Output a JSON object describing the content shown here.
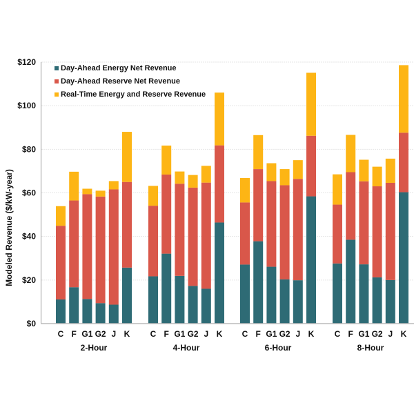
{
  "chart_data": {
    "type": "bar",
    "stacked": true,
    "title": "",
    "xlabel": "",
    "ylabel": "Modeled Revenue ($/kW-year)",
    "ylim": [
      0,
      120
    ],
    "yticks": [
      0,
      20,
      40,
      60,
      80,
      100,
      120
    ],
    "ytick_labels": [
      "$0",
      "$20",
      "$40",
      "$60",
      "$80",
      "$100",
      "$120"
    ],
    "grid": true,
    "legend_position": "top-left",
    "groups": [
      "2-Hour",
      "4-Hour",
      "6-Hour",
      "8-Hour"
    ],
    "categories": [
      "C",
      "F",
      "G1",
      "G2",
      "J",
      "K"
    ],
    "series": [
      {
        "name": "Day-Ahead Energy Net Revenue",
        "color": "#2E6B75",
        "values": [
          [
            11.1,
            16.7,
            11.3,
            9.4,
            8.7,
            25.7
          ],
          [
            21.7,
            32.1,
            21.9,
            17.3,
            16.0,
            46.4
          ],
          [
            27.1,
            37.8,
            26.1,
            20.3,
            19.9,
            58.4
          ],
          [
            27.6,
            38.5,
            27.2,
            21.2,
            20.0,
            60.3
          ]
        ]
      },
      {
        "name": "Day-Ahead Reserve Net Revenue",
        "color": "#D9574A",
        "values": [
          [
            33.8,
            39.8,
            48.1,
            48.9,
            52.9,
            39.3
          ],
          [
            32.4,
            36.3,
            42.3,
            45.1,
            48.7,
            35.4
          ],
          [
            28.5,
            33.1,
            39.3,
            43.2,
            46.5,
            27.8
          ],
          [
            27.0,
            31.0,
            38.1,
            41.8,
            44.6,
            27.3
          ]
        ]
      },
      {
        "name": "Real-Time Energy and Reserve Revenue",
        "color": "#FDB515",
        "values": [
          [
            9.0,
            13.2,
            2.5,
            2.7,
            3.8,
            23.0
          ],
          [
            9.1,
            13.3,
            5.6,
            5.8,
            7.7,
            24.2
          ],
          [
            11.2,
            15.6,
            8.2,
            7.4,
            8.6,
            28.9
          ],
          [
            13.9,
            17.1,
            9.9,
            9.0,
            11.1,
            31.0
          ]
        ]
      }
    ]
  }
}
